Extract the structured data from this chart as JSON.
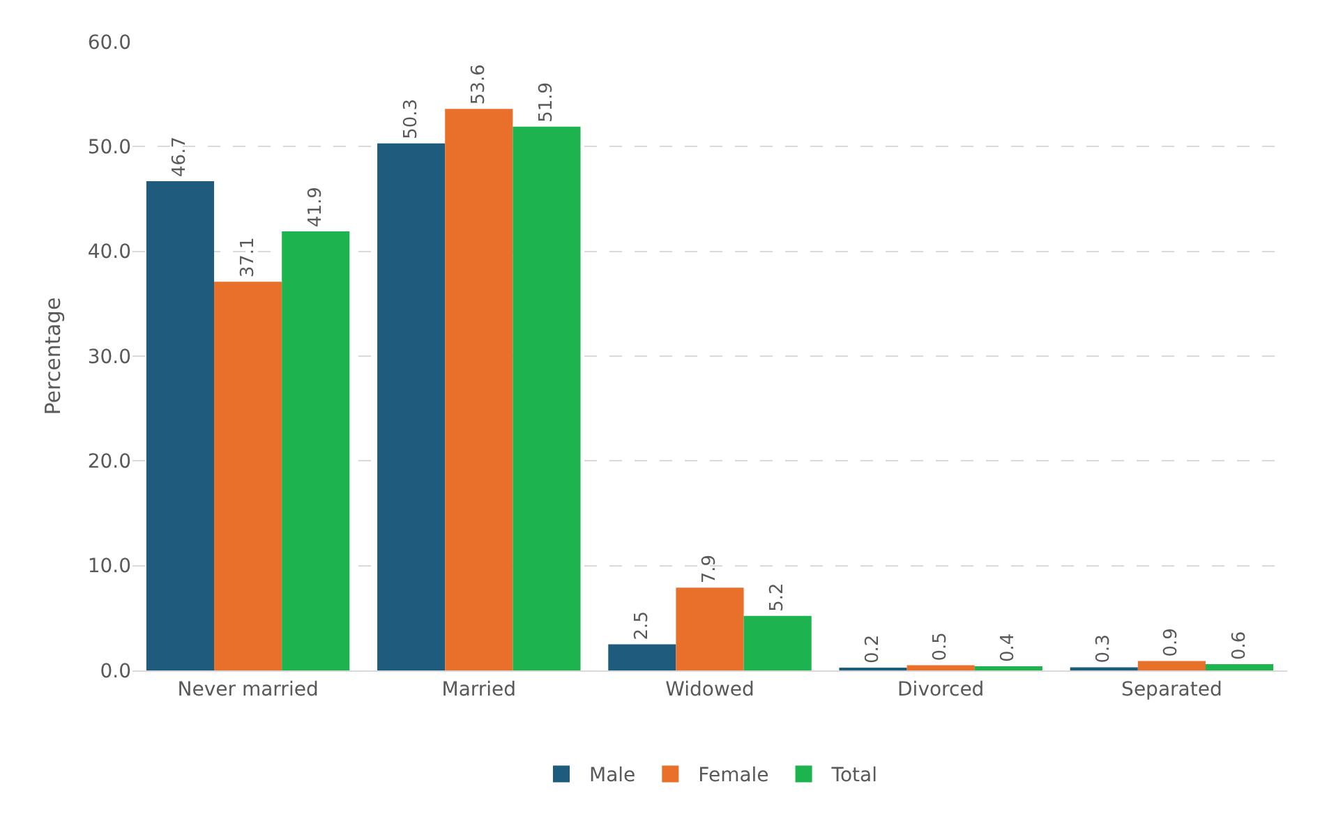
{
  "chart_data": {
    "type": "bar",
    "ylabel": "Percentage",
    "categories": [
      "Never married",
      "Married",
      "Widowed",
      "Divorced",
      "Separated"
    ],
    "series": [
      {
        "name": "Male",
        "color": "#1f5b7d",
        "values": [
          46.7,
          50.3,
          2.5,
          0.2,
          0.3
        ]
      },
      {
        "name": "Female",
        "color": "#e8702a",
        "values": [
          37.1,
          53.6,
          7.9,
          0.5,
          0.9
        ]
      },
      {
        "name": "Total",
        "color": "#1db34f",
        "values": [
          41.9,
          51.9,
          5.2,
          0.4,
          0.6
        ]
      }
    ],
    "ylim": [
      0,
      60
    ],
    "yticks": [
      {
        "value": 0,
        "label": "0.0"
      },
      {
        "value": 10,
        "label": "10.0"
      },
      {
        "value": 20,
        "label": "20.0"
      },
      {
        "value": 30,
        "label": "30.0"
      },
      {
        "value": 40,
        "label": "40.0"
      },
      {
        "value": 50,
        "label": "50.0"
      },
      {
        "value": 60,
        "label": "60.0"
      }
    ],
    "grid": "y",
    "legend": "bottom",
    "data_labels": true
  }
}
